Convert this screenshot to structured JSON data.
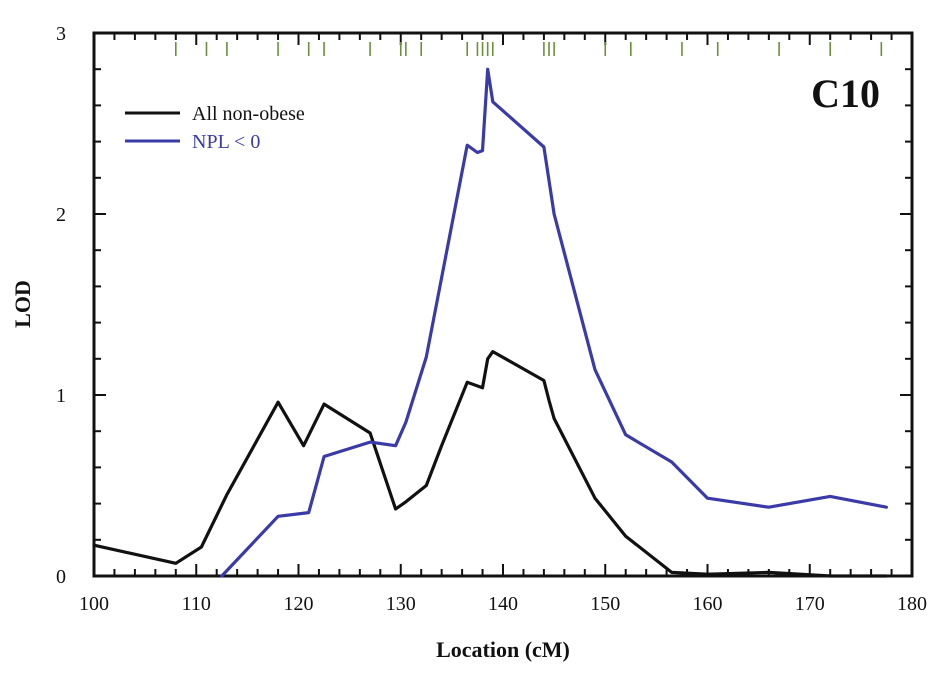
{
  "chart_data": {
    "type": "line",
    "panel_label": "C10",
    "xlabel": "Location (cM)",
    "ylabel": "LOD",
    "xlim": [
      100,
      180
    ],
    "ylim": [
      0,
      3
    ],
    "xticks": [
      100,
      110,
      120,
      130,
      140,
      150,
      160,
      170,
      180
    ],
    "yticks": [
      0,
      1,
      2,
      3
    ],
    "x_minor_step": 2,
    "y_minor_step": 0.2,
    "grid": false,
    "legend": "upper-left",
    "marker_positions": [
      108,
      111,
      113,
      118,
      121,
      122.5,
      127,
      130,
      130.5,
      132,
      136.5,
      137.5,
      138,
      138.5,
      139,
      144,
      144.5,
      145,
      150,
      152.5,
      157.5,
      161,
      167,
      172,
      177
    ],
    "series": [
      {
        "name": "All non-obese",
        "color": "#111111",
        "x": [
          100,
          108,
          110.5,
          113,
          118,
          120.5,
          122.5,
          127,
          129.5,
          130.5,
          132.5,
          134,
          136.5,
          138,
          138.5,
          139,
          144,
          144.5,
          145,
          149,
          152,
          156.5,
          160,
          166,
          172,
          177.5
        ],
        "y": [
          0.17,
          0.07,
          0.16,
          0.45,
          0.96,
          0.72,
          0.95,
          0.79,
          0.37,
          0.41,
          0.5,
          0.72,
          1.07,
          1.04,
          1.2,
          1.24,
          1.08,
          0.97,
          0.87,
          0.43,
          0.22,
          0.02,
          0.01,
          0.02,
          0.0,
          0.0
        ]
      },
      {
        "name": "NPL < 0",
        "color": "#3a3aa8",
        "x": [
          112.5,
          118,
          121,
          122.5,
          127,
          129.5,
          130.5,
          132.5,
          136.5,
          137.5,
          138,
          138.5,
          139,
          144,
          145,
          149,
          152,
          156.5,
          160,
          166,
          172,
          177.5
        ],
        "y": [
          0.0,
          0.33,
          0.35,
          0.66,
          0.74,
          0.72,
          0.85,
          1.21,
          2.38,
          2.34,
          2.35,
          2.8,
          2.62,
          2.37,
          2.0,
          1.14,
          0.78,
          0.63,
          0.43,
          0.38,
          0.44,
          0.38
        ]
      }
    ]
  }
}
